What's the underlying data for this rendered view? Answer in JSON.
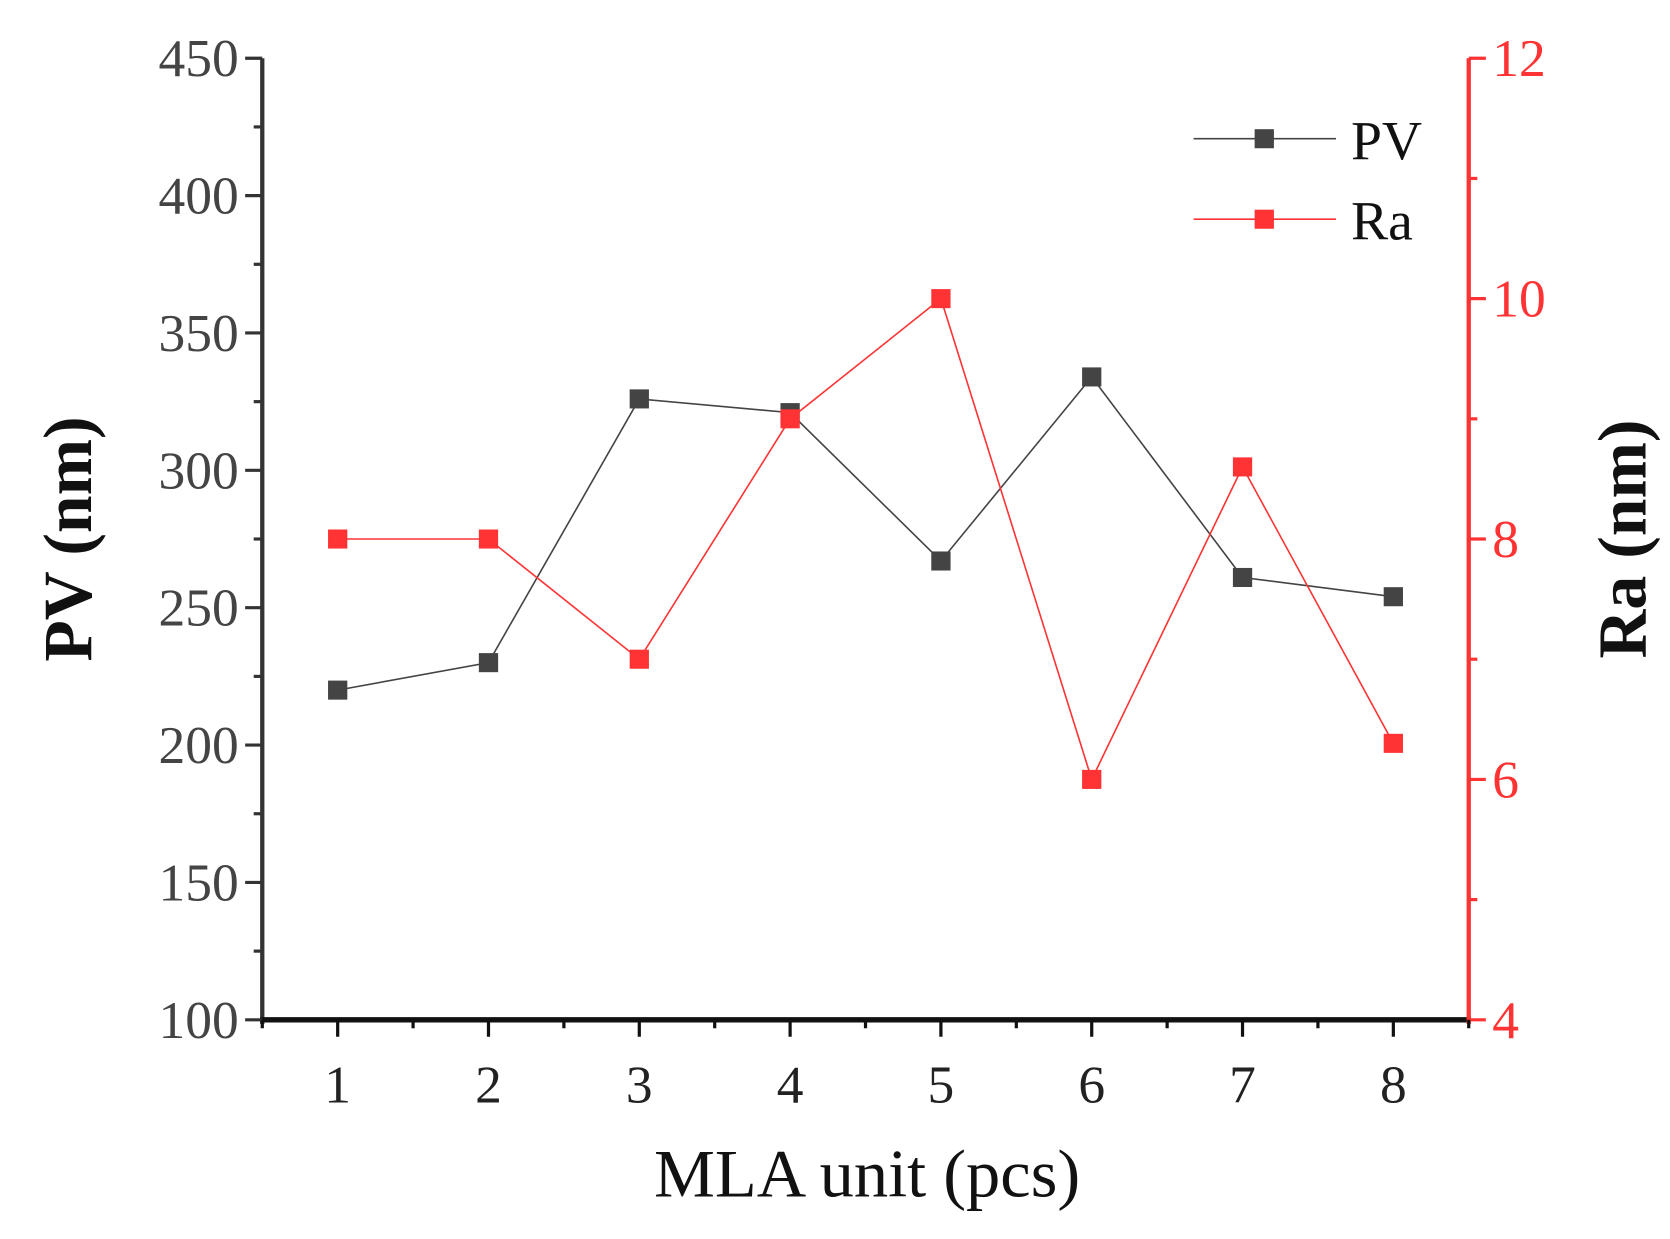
{
  "chart_data": {
    "type": "line",
    "xlabel": "MLA unit (pcs)",
    "ylabel_left": "PV (nm)",
    "ylabel_right": "Ra (nm)",
    "x": [
      1,
      2,
      3,
      4,
      5,
      6,
      7,
      8
    ],
    "x_ticks": [
      "1",
      "2",
      "3",
      "4",
      "5",
      "6",
      "7",
      "8"
    ],
    "xlim": [
      0.5,
      8.5
    ],
    "ylim_left": [
      100,
      450
    ],
    "ylim_right": [
      4,
      12
    ],
    "y_ticks_left": [
      "100",
      "150",
      "200",
      "250",
      "300",
      "350",
      "400",
      "450"
    ],
    "y_ticks_right": [
      "4",
      "6",
      "8",
      "10",
      "12"
    ],
    "legend_position": "top-right",
    "grid": false,
    "series": [
      {
        "name": "PV",
        "axis": "left",
        "color": "#444444",
        "marker": "square",
        "values": [
          220,
          230,
          326,
          321,
          267,
          334,
          261,
          254
        ]
      },
      {
        "name": "Ra",
        "axis": "right",
        "color": "#ff3333",
        "marker": "square",
        "values": [
          8.0,
          8.0,
          7.0,
          9.0,
          10.0,
          6.0,
          8.6,
          6.3
        ]
      }
    ]
  }
}
